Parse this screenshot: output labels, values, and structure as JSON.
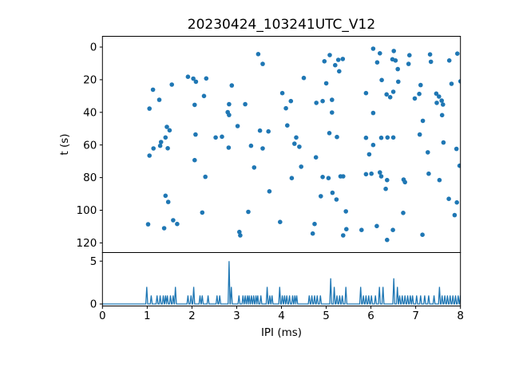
{
  "title": "20230424_103241UTC_V12",
  "colors": {
    "marker": "#1f77b4",
    "line": "#1f77b4",
    "axis": "#000000",
    "background": "#ffffff",
    "text": "#000000"
  },
  "chart_data": [
    {
      "type": "scatter",
      "title": "20230424_103241UTC_V12",
      "xlabel": "",
      "ylabel": "t (s)",
      "xlim": [
        0,
        8
      ],
      "ylim": [
        126,
        -6
      ],
      "y_inverted": true,
      "grid": false,
      "legend": null,
      "yticks": [
        0,
        20,
        40,
        60,
        80,
        100,
        120
      ],
      "points": [
        [
          1.02,
          108.6
        ],
        [
          1.05,
          37.7
        ],
        [
          1.05,
          66.5
        ],
        [
          1.13,
          26.1
        ],
        [
          1.14,
          62.1
        ],
        [
          1.27,
          32.3
        ],
        [
          1.29,
          60.5
        ],
        [
          1.31,
          58.2
        ],
        [
          1.38,
          111.0
        ],
        [
          1.41,
          55.4
        ],
        [
          1.41,
          91.1
        ],
        [
          1.44,
          48.9
        ],
        [
          1.46,
          62.0
        ],
        [
          1.47,
          94.9
        ],
        [
          1.5,
          51.0
        ],
        [
          1.55,
          23.0
        ],
        [
          1.58,
          106.1
        ],
        [
          1.67,
          108.4
        ],
        [
          1.91,
          18.2
        ],
        [
          2.03,
          19.3
        ],
        [
          2.06,
          35.4
        ],
        [
          2.06,
          69.3
        ],
        [
          2.08,
          53.6
        ],
        [
          2.09,
          21.2
        ],
        [
          2.23,
          101.4
        ],
        [
          2.27,
          30.0
        ],
        [
          2.3,
          79.5
        ],
        [
          2.32,
          19.2
        ],
        [
          2.53,
          55.4
        ],
        [
          2.67,
          54.9
        ],
        [
          2.8,
          39.9
        ],
        [
          2.82,
          61.6
        ],
        [
          2.83,
          35.0
        ],
        [
          2.83,
          41.6
        ],
        [
          2.89,
          23.5
        ],
        [
          3.02,
          48.4
        ],
        [
          3.06,
          113.3
        ],
        [
          3.08,
          115.4
        ],
        [
          3.19,
          35.0
        ],
        [
          3.26,
          101.0
        ],
        [
          3.32,
          60.5
        ],
        [
          3.39,
          73.8
        ],
        [
          3.48,
          4.3
        ],
        [
          3.52,
          51.2
        ],
        [
          3.58,
          10.3
        ],
        [
          3.58,
          62.1
        ],
        [
          3.71,
          51.7
        ],
        [
          3.73,
          88.4
        ],
        [
          3.97,
          107.2
        ],
        [
          4.02,
          28.2
        ],
        [
          4.1,
          37.5
        ],
        [
          4.13,
          48.0
        ],
        [
          4.21,
          33.1
        ],
        [
          4.23,
          80.3
        ],
        [
          4.29,
          59.2
        ],
        [
          4.33,
          55.4
        ],
        [
          4.4,
          61.1
        ],
        [
          4.44,
          73.3
        ],
        [
          4.5,
          18.9
        ],
        [
          4.7,
          114.3
        ],
        [
          4.74,
          108.4
        ],
        [
          4.77,
          67.6
        ],
        [
          4.78,
          34.2
        ],
        [
          4.88,
          91.4
        ],
        [
          4.92,
          33.1
        ],
        [
          4.92,
          79.6
        ],
        [
          4.96,
          8.7
        ],
        [
          5.0,
          22.2
        ],
        [
          5.05,
          80.3
        ],
        [
          5.07,
          52.7
        ],
        [
          5.08,
          4.9
        ],
        [
          5.13,
          32.3
        ],
        [
          5.13,
          40.1
        ],
        [
          5.14,
          89.3
        ],
        [
          5.2,
          11.1
        ],
        [
          5.23,
          93.4
        ],
        [
          5.24,
          55.1
        ],
        [
          5.27,
          7.8
        ],
        [
          5.29,
          14.8
        ],
        [
          5.32,
          79.2
        ],
        [
          5.37,
          7.3
        ],
        [
          5.38,
          79.2
        ],
        [
          5.38,
          115.4
        ],
        [
          5.44,
          100.7
        ],
        [
          5.45,
          111.6
        ],
        [
          5.79,
          112.1
        ],
        [
          5.89,
          28.2
        ],
        [
          5.89,
          55.6
        ],
        [
          5.89,
          77.9
        ],
        [
          5.96,
          65.7
        ],
        [
          6.01,
          77.6
        ],
        [
          6.05,
          1.0
        ],
        [
          6.05,
          40.4
        ],
        [
          6.05,
          60.0
        ],
        [
          6.13,
          109.7
        ],
        [
          6.14,
          9.4
        ],
        [
          6.2,
          3.8
        ],
        [
          6.2,
          76.8
        ],
        [
          6.23,
          55.6
        ],
        [
          6.23,
          79.2
        ],
        [
          6.24,
          20.2
        ],
        [
          6.33,
          86.9
        ],
        [
          6.35,
          29.0
        ],
        [
          6.36,
          81.5
        ],
        [
          6.36,
          118.2
        ],
        [
          6.37,
          55.4
        ],
        [
          6.43,
          30.7
        ],
        [
          6.48,
          7.5
        ],
        [
          6.49,
          112.1
        ],
        [
          6.5,
          27.4
        ],
        [
          6.5,
          55.4
        ],
        [
          6.51,
          2.4
        ],
        [
          6.55,
          8.2
        ],
        [
          6.6,
          13.5
        ],
        [
          6.61,
          21.2
        ],
        [
          6.72,
          101.6
        ],
        [
          6.73,
          81.2
        ],
        [
          6.76,
          82.8
        ],
        [
          6.84,
          10.3
        ],
        [
          6.86,
          5.0
        ],
        [
          6.98,
          31.5
        ],
        [
          7.08,
          28.7
        ],
        [
          7.09,
          53.6
        ],
        [
          7.11,
          23.3
        ],
        [
          7.15,
          115.0
        ],
        [
          7.16,
          45.2
        ],
        [
          7.27,
          64.5
        ],
        [
          7.29,
          77.6
        ],
        [
          7.32,
          4.5
        ],
        [
          7.34,
          9.0
        ],
        [
          7.46,
          28.5
        ],
        [
          7.47,
          34.2
        ],
        [
          7.52,
          30.3
        ],
        [
          7.53,
          81.5
        ],
        [
          7.58,
          32.8
        ],
        [
          7.59,
          41.7
        ],
        [
          7.61,
          35.2
        ],
        [
          7.62,
          58.5
        ],
        [
          7.74,
          93.0
        ],
        [
          7.75,
          8.2
        ],
        [
          7.8,
          22.5
        ],
        [
          7.87,
          103.0
        ],
        [
          7.91,
          62.4
        ],
        [
          7.92,
          95.2
        ],
        [
          7.93,
          4.0
        ],
        [
          7.98,
          72.7
        ],
        [
          8.0,
          21.0
        ]
      ]
    },
    {
      "type": "line",
      "xlabel": "IPI (ms)",
      "ylabel": "",
      "xlim": [
        0,
        8
      ],
      "ylim": [
        -0.25,
        6
      ],
      "grid": false,
      "legend": null,
      "xticks": [
        0,
        1,
        2,
        3,
        4,
        5,
        6,
        7,
        8
      ],
      "yticks": [
        0,
        5
      ],
      "baseline": 0,
      "spikes": [
        [
          0.99,
          2
        ],
        [
          1.09,
          1
        ],
        [
          1.22,
          1
        ],
        [
          1.29,
          1
        ],
        [
          1.36,
          1
        ],
        [
          1.41,
          1
        ],
        [
          1.45,
          1
        ],
        [
          1.52,
          1
        ],
        [
          1.58,
          1
        ],
        [
          1.63,
          2
        ],
        [
          1.91,
          1
        ],
        [
          1.98,
          1
        ],
        [
          2.04,
          2
        ],
        [
          2.18,
          1
        ],
        [
          2.23,
          1
        ],
        [
          2.36,
          1
        ],
        [
          2.56,
          1
        ],
        [
          2.62,
          1
        ],
        [
          2.83,
          5
        ],
        [
          2.88,
          2
        ],
        [
          3.05,
          1
        ],
        [
          3.14,
          1
        ],
        [
          3.19,
          1
        ],
        [
          3.24,
          1
        ],
        [
          3.28,
          1
        ],
        [
          3.33,
          1
        ],
        [
          3.38,
          1
        ],
        [
          3.43,
          1
        ],
        [
          3.47,
          1
        ],
        [
          3.54,
          1
        ],
        [
          3.68,
          2
        ],
        [
          3.74,
          1
        ],
        [
          3.79,
          1
        ],
        [
          3.96,
          2
        ],
        [
          4.02,
          1
        ],
        [
          4.07,
          1
        ],
        [
          4.12,
          1
        ],
        [
          4.18,
          1
        ],
        [
          4.25,
          1
        ],
        [
          4.3,
          1
        ],
        [
          4.34,
          1
        ],
        [
          4.62,
          1
        ],
        [
          4.68,
          1
        ],
        [
          4.74,
          1
        ],
        [
          4.8,
          1
        ],
        [
          4.87,
          1
        ],
        [
          5.1,
          3
        ],
        [
          5.18,
          2
        ],
        [
          5.24,
          1
        ],
        [
          5.3,
          1
        ],
        [
          5.36,
          1
        ],
        [
          5.44,
          2
        ],
        [
          5.77,
          2
        ],
        [
          5.83,
          1
        ],
        [
          5.89,
          1
        ],
        [
          5.95,
          1
        ],
        [
          6.01,
          1
        ],
        [
          6.1,
          1
        ],
        [
          6.19,
          2
        ],
        [
          6.27,
          2
        ],
        [
          6.51,
          3
        ],
        [
          6.59,
          2
        ],
        [
          6.64,
          1
        ],
        [
          6.7,
          1
        ],
        [
          6.76,
          1
        ],
        [
          6.82,
          1
        ],
        [
          6.88,
          1
        ],
        [
          6.93,
          1
        ],
        [
          7.02,
          1
        ],
        [
          7.11,
          1
        ],
        [
          7.2,
          1
        ],
        [
          7.29,
          1
        ],
        [
          7.41,
          1
        ],
        [
          7.53,
          2
        ],
        [
          7.59,
          1
        ],
        [
          7.65,
          1
        ],
        [
          7.71,
          1
        ],
        [
          7.77,
          1
        ],
        [
          7.83,
          1
        ],
        [
          7.89,
          1
        ],
        [
          7.95,
          1
        ],
        [
          8.0,
          1
        ]
      ]
    }
  ]
}
